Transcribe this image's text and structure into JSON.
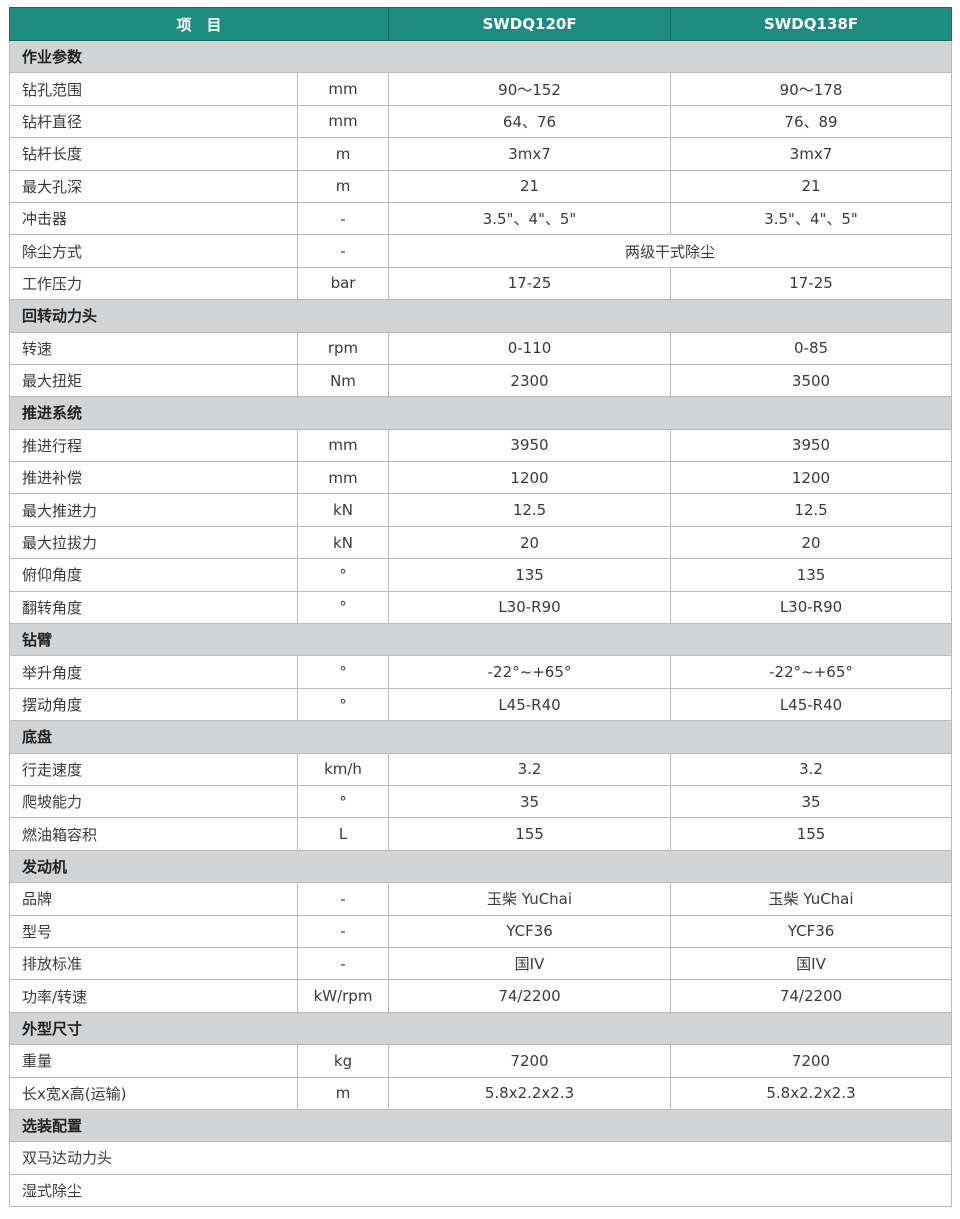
{
  "header": {
    "item": "项　目",
    "model_a": "SWDQ120F",
    "model_b": "SWDQ138F"
  },
  "colors": {
    "header_bg": "#1e8a80",
    "section_bg": "#d3d4d6"
  },
  "sections": [
    {
      "title": "作业参数",
      "rows": [
        {
          "name": "钻孔范围",
          "unit": "mm",
          "a": "90～152",
          "b": "90～178"
        },
        {
          "name": "钻杆直径",
          "unit": "mm",
          "a": "64、76",
          "b": "76、89"
        },
        {
          "name": "钻杆长度",
          "unit": "m",
          "a": "3mx7",
          "b": "3mx7"
        },
        {
          "name": "最大孔深",
          "unit": "m",
          "a": "21",
          "b": "21"
        },
        {
          "name": "冲击器",
          "unit": "-",
          "a": "3.5\"、4\"、5\"",
          "b": "3.5\"、4\"、5\""
        },
        {
          "name": "除尘方式",
          "unit": "-",
          "merged": "两级干式除尘"
        },
        {
          "name": "工作压力",
          "unit": "bar",
          "a": "17-25",
          "b": "17-25"
        }
      ]
    },
    {
      "title": "回转动力头",
      "rows": [
        {
          "name": "转速",
          "unit": "rpm",
          "a": "0-110",
          "b": "0-85"
        },
        {
          "name": "最大扭矩",
          "unit": "Nm",
          "a": "2300",
          "b": "3500"
        }
      ]
    },
    {
      "title": "推进系统",
      "rows": [
        {
          "name": "推进行程",
          "unit": "mm",
          "a": "3950",
          "b": "3950"
        },
        {
          "name": "推进补偿",
          "unit": "mm",
          "a": "1200",
          "b": "1200"
        },
        {
          "name": "最大推进力",
          "unit": "kN",
          "a": "12.5",
          "b": "12.5"
        },
        {
          "name": "最大拉拔力",
          "unit": "kN",
          "a": "20",
          "b": "20"
        },
        {
          "name": "俯仰角度",
          "unit": "°",
          "a": "135",
          "b": "135"
        },
        {
          "name": "翻转角度",
          "unit": "°",
          "a": "L30-R90",
          "b": "L30-R90"
        }
      ]
    },
    {
      "title": "钻臂",
      "rows": [
        {
          "name": "举升角度",
          "unit": "°",
          "a": "-22°~+65°",
          "b": "-22°~+65°"
        },
        {
          "name": "摆动角度",
          "unit": "°",
          "a": "L45-R40",
          "b": "L45-R40"
        }
      ]
    },
    {
      "title": "底盘",
      "rows": [
        {
          "name": "行走速度",
          "unit": "km/h",
          "a": "3.2",
          "b": "3.2"
        },
        {
          "name": "爬坡能力",
          "unit": "°",
          "a": "35",
          "b": "35"
        },
        {
          "name": "燃油箱容积",
          "unit": "L",
          "a": "155",
          "b": "155"
        }
      ]
    },
    {
      "title": "发动机",
      "rows": [
        {
          "name": "品牌",
          "unit": "-",
          "a": "玉柴 YuChai",
          "b": "玉柴 YuChai"
        },
        {
          "name": "型号",
          "unit": "-",
          "a": "YCF36",
          "b": "YCF36"
        },
        {
          "name": "排放标准",
          "unit": "-",
          "a": "国IV",
          "b": "国IV"
        },
        {
          "name": "功率/转速",
          "unit": "kW/rpm",
          "a": "74/2200",
          "b": "74/2200"
        }
      ]
    },
    {
      "title": "外型尺寸",
      "rows": [
        {
          "name": "重量",
          "unit": "kg",
          "a": "7200",
          "b": "7200"
        },
        {
          "name": "长x宽x高(运输)",
          "unit": "m",
          "a": "5.8x2.2x2.3",
          "b": "5.8x2.2x2.3"
        }
      ]
    },
    {
      "title": "选装配置",
      "options": [
        "双马达动力头",
        "湿式除尘"
      ]
    }
  ]
}
